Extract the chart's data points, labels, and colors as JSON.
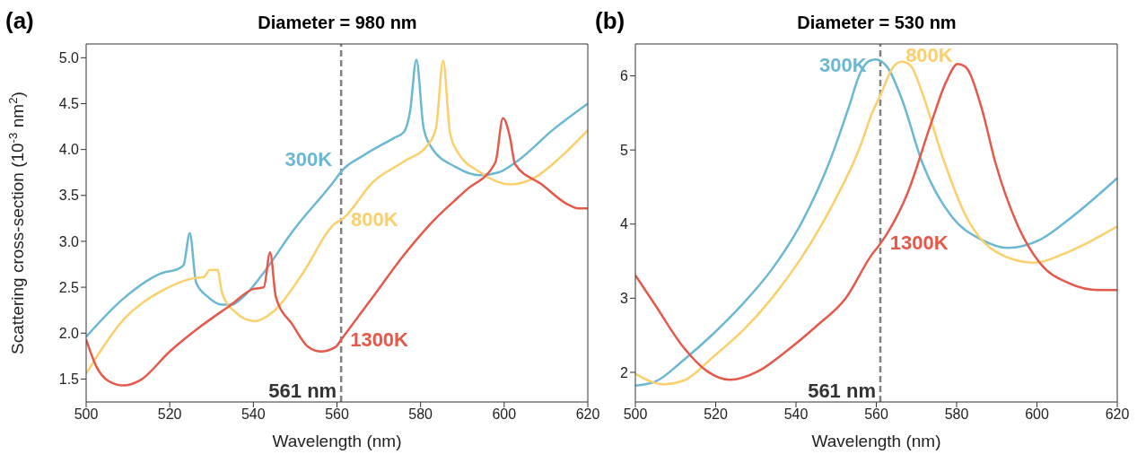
{
  "chart_data": [
    {
      "type": "line",
      "title": "Diameter = 980 nm",
      "xlabel": "Wavelength (nm)",
      "ylabel": "Scattering cross-section (10$^{-3}$ nm$^{2}$)",
      "annotations": [
        "(a)"
      ],
      "xlim": [
        500,
        620
      ],
      "xticks": [
        500,
        520,
        540,
        560,
        580,
        600,
        620
      ],
      "ylim": [
        1.25,
        5.15
      ],
      "yticks": [
        1.5,
        {
          "value": 2,
          "label": "2.0"
        },
        2.5,
        {
          "value": 3,
          "label": "3.0"
        },
        3.5,
        {
          "value": 4,
          "label": "4.0"
        },
        4.5,
        {
          "value": 5,
          "label": "5.0"
        }
      ],
      "marker": "none",
      "line_style": "solid",
      "ref_lines": [
        {
          "axis": "x",
          "value": 561,
          "label": "561 nm",
          "color": "#808080",
          "line_style": "dashed"
        }
      ],
      "series": [
        {
          "name": "300K",
          "color": "#6bb8d4",
          "x": [
            500,
            509,
            518.5,
            521.5,
            523.3,
            524.8,
            526.3,
            529,
            532.5,
            534.7,
            537.7,
            542,
            549.4,
            559.7,
            561,
            566.5,
            573.8,
            576,
            577.5,
            579,
            580.7,
            582.5,
            588.4,
            594.2,
            598.6,
            603,
            611.8,
            620
          ],
          "values": [
            1.96,
            2.38,
            2.66,
            2.69,
            2.74,
            3.09,
            2.55,
            2.4,
            2.31,
            2.31,
            2.4,
            2.63,
            3.11,
            3.68,
            3.76,
            3.94,
            4.13,
            4.19,
            4.42,
            4.98,
            4.24,
            4.03,
            3.81,
            3.72,
            3.75,
            3.87,
            4.22,
            4.5
          ]
        },
        {
          "name": "800K",
          "color": "#fbcf6a",
          "x": [
            500,
            509,
            518.5,
            525.9,
            528.1,
            529.6,
            531.4,
            532.5,
            535.4,
            540.2,
            544.9,
            551.5,
            559.7,
            561.2,
            568.7,
            576,
            581.9,
            583.7,
            585.4,
            587,
            588.5,
            594.3,
            601.6,
            607.5,
            613.3,
            620
          ],
          "values": [
            1.56,
            2.15,
            2.47,
            2.6,
            2.61,
            2.69,
            2.69,
            2.44,
            2.24,
            2.13,
            2.24,
            2.63,
            3.2,
            3.24,
            3.65,
            3.87,
            4.06,
            4.24,
            4.97,
            4.19,
            4,
            3.75,
            3.62,
            3.7,
            3.91,
            4.21
          ]
        },
        {
          "name": "1300K",
          "color": "#e5584a",
          "x": [
            500,
            502.4,
            505.3,
            509,
            512.7,
            520,
            527.3,
            534.7,
            539.9,
            542.5,
            544,
            545.4,
            549.4,
            553.1,
            556,
            559.7,
            561,
            568.7,
            576,
            583.4,
            590.7,
            597.9,
            599.7,
            601.4,
            602.6,
            609,
            614.9,
            617.8,
            620
          ],
          "values": [
            1.93,
            1.64,
            1.48,
            1.43,
            1.48,
            1.8,
            2.07,
            2.31,
            2.48,
            2.5,
            2.88,
            2.39,
            2.09,
            1.85,
            1.8,
            1.85,
            1.93,
            2.4,
            2.85,
            3.24,
            3.55,
            3.86,
            4.34,
            4.13,
            3.84,
            3.62,
            3.41,
            3.36,
            3.36
          ]
        }
      ]
    },
    {
      "type": "line",
      "title": "Diameter = 530 nm",
      "xlabel": "Wavelength (nm)",
      "annotations": [
        "(b)"
      ],
      "xlim": [
        500,
        620
      ],
      "xticks": [
        500,
        520,
        540,
        560,
        580,
        600,
        620
      ],
      "ylim": [
        1.6,
        6.43
      ],
      "yticks": [
        2,
        3,
        4,
        5,
        6
      ],
      "marker": "none",
      "line_style": "solid",
      "ref_lines": [
        {
          "axis": "x",
          "value": 561,
          "label": "561 nm",
          "color": "#808080",
          "line_style": "dashed"
        }
      ],
      "series": [
        {
          "name": "300K",
          "color": "#6bb8d4",
          "x": [
            500,
            504.8,
            512.1,
            519.4,
            526.7,
            534,
            541.4,
            548.7,
            553.1,
            556,
            558.2,
            559.8,
            562.7,
            566.4,
            571.5,
            578.8,
            586.2,
            592.7,
            600.8,
            608.1,
            620
          ],
          "values": [
            1.82,
            1.87,
            2.17,
            2.52,
            2.92,
            3.39,
            4.02,
            4.89,
            5.57,
            6.04,
            6.2,
            6.22,
            6.12,
            5.68,
            4.82,
            4.1,
            3.79,
            3.68,
            3.79,
            4.07,
            4.62
          ]
        },
        {
          "name": "800K",
          "color": "#fbcf6a",
          "x": [
            500,
            507,
            512.1,
            519.4,
            526.7,
            534,
            541.4,
            548.7,
            556,
            558.9,
            561.2,
            564.2,
            566.4,
            568.5,
            571.5,
            576.6,
            582.4,
            589.7,
            599.2,
            608,
            620
          ],
          "values": [
            1.98,
            1.84,
            1.89,
            2.21,
            2.56,
            3,
            3.55,
            4.22,
            5.05,
            5.49,
            5.76,
            6.12,
            6.19,
            6.14,
            5.76,
            4.89,
            4.1,
            3.63,
            3.48,
            3.63,
            3.97
          ]
        },
        {
          "name": "1300K",
          "color": "#e5584a",
          "x": [
            500,
            504.8,
            512.1,
            518,
            523.5,
            530.4,
            537.7,
            545,
            552.4,
            558.9,
            561.2,
            567.8,
            573.7,
            577.4,
            580.3,
            582.2,
            586.2,
            589.7,
            594.9,
            600.8,
            608.1,
            615.4,
            620
          ],
          "values": [
            3.31,
            2.92,
            2.33,
            2.01,
            1.9,
            2.01,
            2.29,
            2.62,
            3,
            3.59,
            3.75,
            4.42,
            5.37,
            5.92,
            6.16,
            6.12,
            5.57,
            4.82,
            4.02,
            3.47,
            3.2,
            3.11,
            3.11
          ]
        }
      ]
    }
  ]
}
